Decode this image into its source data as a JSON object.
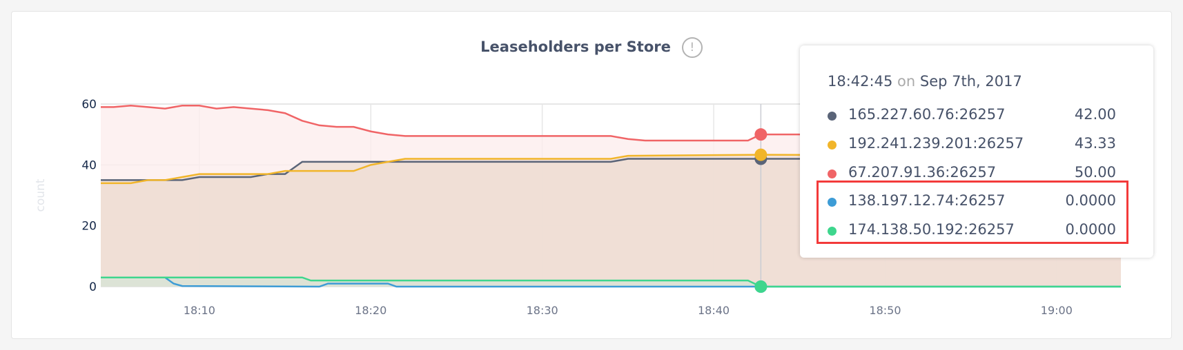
{
  "chart_data": {
    "type": "area",
    "title": "Leaseholders per Store",
    "ylabel": "count",
    "xlabel": "",
    "ylim": [
      0,
      60
    ],
    "xlim": [
      "18:04:15",
      "19:03:45"
    ],
    "yticks": [
      "0",
      "20",
      "40",
      "60"
    ],
    "xticks": [
      "18:10",
      "18:20",
      "18:30",
      "18:40",
      "18:50",
      "19:00"
    ],
    "grid": true,
    "series": [
      {
        "name": "67.207.91.36:26257",
        "color": "#f06466",
        "fill": "#fdeded",
        "points": [
          [
            "18:04:15",
            59
          ],
          [
            "18:05",
            59
          ],
          [
            "18:06",
            59.5
          ],
          [
            "18:07",
            59
          ],
          [
            "18:08",
            58.5
          ],
          [
            "18:09",
            59.5
          ],
          [
            "18:10",
            59.5
          ],
          [
            "18:11",
            58.5
          ],
          [
            "18:12",
            59
          ],
          [
            "18:13",
            58.5
          ],
          [
            "18:14",
            58
          ],
          [
            "18:15",
            57
          ],
          [
            "18:16",
            54.5
          ],
          [
            "18:17",
            53
          ],
          [
            "18:18",
            52.5
          ],
          [
            "18:19",
            52.5
          ],
          [
            "18:20",
            51
          ],
          [
            "18:21",
            50
          ],
          [
            "18:22",
            49.5
          ],
          [
            "18:24",
            49.5
          ],
          [
            "18:26",
            49.5
          ],
          [
            "18:28",
            49.5
          ],
          [
            "18:30",
            49.5
          ],
          [
            "18:32",
            49.5
          ],
          [
            "18:34",
            49.5
          ],
          [
            "18:35",
            48.5
          ],
          [
            "18:36",
            48
          ],
          [
            "18:38",
            48
          ],
          [
            "18:40",
            48
          ],
          [
            "18:42",
            48
          ],
          [
            "18:42:45",
            50
          ],
          [
            "19:03:45",
            50
          ]
        ]
      },
      {
        "name": "165.227.60.76:26257",
        "color": "#5a6478",
        "fill": "#efdfd4",
        "points": [
          [
            "18:04:15",
            35
          ],
          [
            "18:09",
            35
          ],
          [
            "18:10",
            36
          ],
          [
            "18:13",
            36
          ],
          [
            "18:14",
            37
          ],
          [
            "18:15",
            37
          ],
          [
            "18:16",
            41
          ],
          [
            "18:34",
            41
          ],
          [
            "18:35",
            42
          ],
          [
            "18:42:45",
            42
          ],
          [
            "19:03:45",
            42
          ]
        ]
      },
      {
        "name": "192.241.239.201:26257",
        "color": "#f1b52a",
        "fill": "#efdfd4",
        "points": [
          [
            "18:04:15",
            34
          ],
          [
            "18:06",
            34
          ],
          [
            "18:07",
            35
          ],
          [
            "18:08",
            35
          ],
          [
            "18:09",
            36
          ],
          [
            "18:10",
            37
          ],
          [
            "18:14",
            37
          ],
          [
            "18:15",
            38
          ],
          [
            "18:19",
            38
          ],
          [
            "18:20",
            40
          ],
          [
            "18:21",
            41
          ],
          [
            "18:22",
            42
          ],
          [
            "18:34",
            42
          ],
          [
            "18:35",
            43
          ],
          [
            "18:42:45",
            43.33
          ],
          [
            "19:03:45",
            43
          ]
        ]
      },
      {
        "name": "138.197.12.74:26257",
        "color": "#3d9cd6",
        "fill": "#e0e6dc",
        "points": [
          [
            "18:04:15",
            3
          ],
          [
            "18:08",
            3
          ],
          [
            "18:08:30",
            1
          ],
          [
            "18:09",
            0.2
          ],
          [
            "18:17",
            0
          ],
          [
            "18:17:30",
            1
          ],
          [
            "18:21",
            1
          ],
          [
            "18:21:30",
            0
          ],
          [
            "18:42:45",
            0
          ],
          [
            "19:03:45",
            0
          ]
        ]
      },
      {
        "name": "174.138.50.192:26257",
        "color": "#3ed68d",
        "fill": "#d9e2d4",
        "points": [
          [
            "18:04:15",
            3
          ],
          [
            "18:16",
            3
          ],
          [
            "18:16:30",
            2
          ],
          [
            "18:42",
            2
          ],
          [
            "18:42:45",
            0
          ],
          [
            "19:03:45",
            0
          ]
        ]
      }
    ]
  },
  "tooltip": {
    "time": "18:42:45",
    "on": "on",
    "date": "Sep 7th, 2017",
    "rows": [
      {
        "name": "165.227.60.76:26257",
        "value": "42.00",
        "color": "#5a6478"
      },
      {
        "name": "192.241.239.201:26257",
        "value": "43.33",
        "color": "#f1b52a"
      },
      {
        "name": "67.207.91.36:26257",
        "value": "50.00",
        "color": "#f06466"
      },
      {
        "name": "138.197.12.74:26257",
        "value": "0.0000",
        "color": "#3d9cd6"
      },
      {
        "name": "174.138.50.192:26257",
        "value": "0.0000",
        "color": "#3ed68d"
      }
    ]
  },
  "info_icon": "!",
  "highlight_color": "#f33a3a"
}
